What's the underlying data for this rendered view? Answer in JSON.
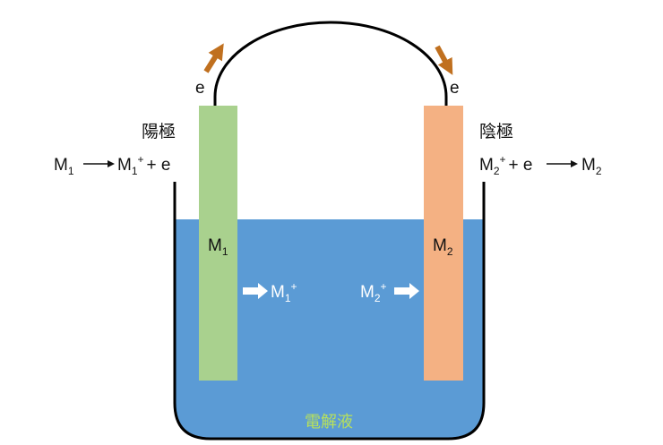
{
  "colors": {
    "electrolyte": "#5b9bd5",
    "anode": "#a9d18e",
    "cathode": "#f4b183",
    "electron_arrow": "#c0701f",
    "electrolyte_label": "#b7e05c",
    "wire": "#000000"
  },
  "wire": {
    "left_label": "e",
    "right_label": "e"
  },
  "anode": {
    "title": "陽極",
    "reaction": {
      "reactant": "M",
      "reactant_sub": "1",
      "product": "M",
      "product_sub": "1",
      "product_sup": "+",
      "plus": "+ e"
    },
    "electrode_label": "M",
    "electrode_sub": "1",
    "ion_label": "M",
    "ion_sub": "1",
    "ion_sup": "+"
  },
  "cathode": {
    "title": "陰極",
    "reaction": {
      "reactant": "M",
      "reactant_sub": "2",
      "reactant_sup": "+",
      "plus": "+ e",
      "product": "M",
      "product_sub": "2"
    },
    "electrode_label": "M",
    "electrode_sub": "2",
    "ion_label": "M",
    "ion_sub": "2",
    "ion_sup": "+"
  },
  "electrolyte_label": "電解液"
}
